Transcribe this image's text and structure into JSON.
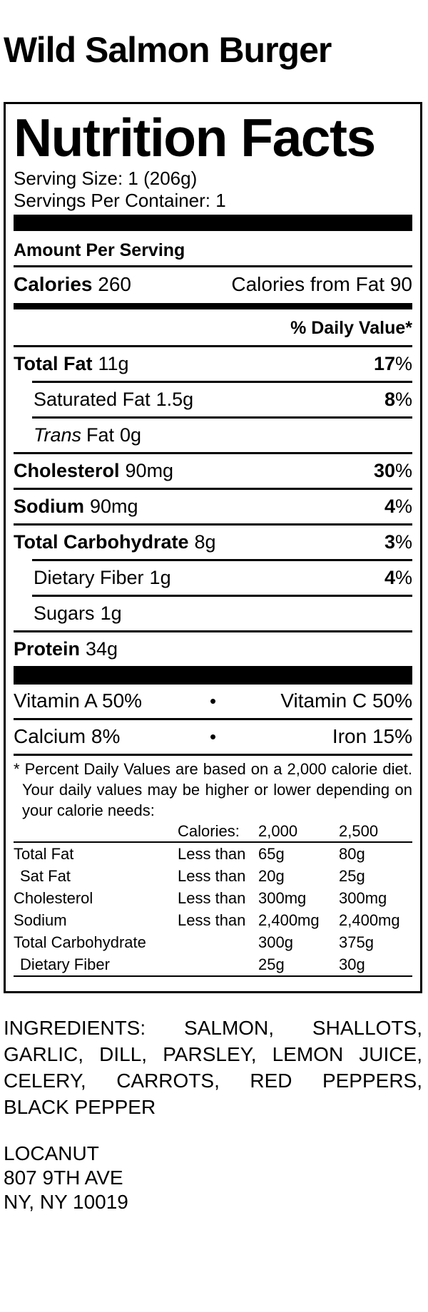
{
  "page": {
    "background": "#ffffff",
    "text_color": "#000000"
  },
  "product_title": "Wild Salmon Burger",
  "nutrition_label": {
    "title": "Nutrition Facts",
    "serving_size": "Serving Size: 1 (206g)",
    "servings_per_container": "Servings Per Container: 1",
    "amount_per_serving": "Amount Per Serving",
    "calories": {
      "label": "Calories",
      "value": "260",
      "from_fat": "Calories from Fat 90"
    },
    "daily_value_header": "% Daily Value*",
    "percent_sign": "%",
    "nutrients": [
      {
        "name": "Total Fat",
        "amount": "11g",
        "dv": "17"
      },
      {
        "name": "Saturated Fat",
        "amount": "1.5g",
        "dv": "8"
      },
      {
        "name_italic": "Trans",
        "name": "Fat",
        "amount": "0g"
      },
      {
        "name": "Cholesterol",
        "amount": "90mg",
        "dv": "30"
      },
      {
        "name": "Sodium",
        "amount": "90mg",
        "dv": "4"
      },
      {
        "name": "Total Carbohydrate",
        "amount": "8g",
        "dv": "3"
      },
      {
        "name": "Dietary Fiber",
        "amount": "1g",
        "dv": "4"
      },
      {
        "name": "Sugars",
        "amount": "1g"
      },
      {
        "name": "Protein",
        "amount": "34g"
      }
    ],
    "micronutrients": {
      "bullet": "•",
      "rows": [
        {
          "left": "Vitamin A 50%",
          "right": "Vitamin C 50%"
        },
        {
          "left": "Calcium 8%",
          "right": "Iron 15%"
        }
      ]
    },
    "footnote_lines": [
      "* Percent Daily Values are based on a 2,000 calorie diet.",
      "Your daily values may be higher or lower depending on",
      "your calorie needs:"
    ],
    "reference_table": {
      "header": {
        "calories_label": "Calories:",
        "col_2000": "2,000",
        "col_2500": "2,500"
      },
      "rows": [
        {
          "name": "Total Fat",
          "qualifier": "Less than",
          "v2000": "65g",
          "v2500": "80g"
        },
        {
          "name": "Sat Fat",
          "qualifier": "Less than",
          "v2000": "20g",
          "v2500": "25g"
        },
        {
          "name": "Cholesterol",
          "qualifier": "Less than",
          "v2000": "300mg",
          "v2500": "300mg"
        },
        {
          "name": "Sodium",
          "qualifier": "Less than",
          "v2000": "2,400mg",
          "v2500": "2,400mg"
        },
        {
          "name": "Total Carbohydrate",
          "qualifier": "",
          "v2000": "300g",
          "v2500": "375g"
        },
        {
          "name": "Dietary Fiber",
          "qualifier": "",
          "v2000": "25g",
          "v2500": "30g"
        }
      ]
    }
  },
  "ingredients_lines": [
    "INGREDIENTS: SALMON, SHALLOTS,",
    "GARLIC, DILL, PARSLEY, LEMON JUICE,",
    "CELERY, CARROTS, RED PEPPERS,",
    "BLACK PEPPER"
  ],
  "manufacturer": {
    "name": "LOCANUT",
    "address_line1": "807 9TH AVE",
    "address_line2": "NY, NY 10019"
  }
}
